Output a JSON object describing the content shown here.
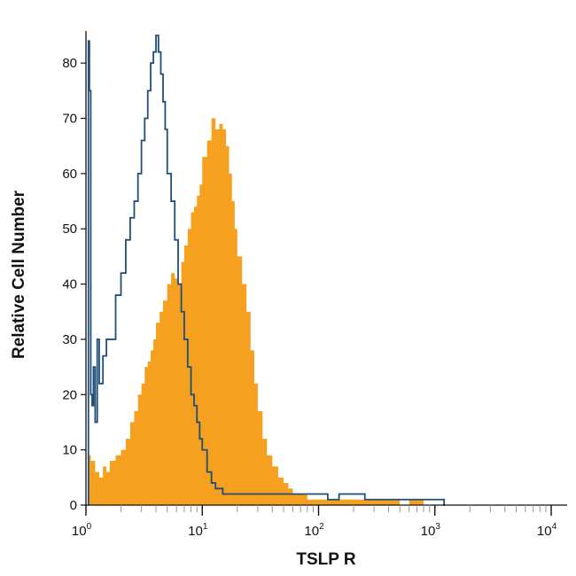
{
  "chart_data": {
    "type": "histogram-overlay",
    "xlabel": "TSLP R",
    "ylabel": "Relative Cell Number",
    "x_scale": "log",
    "xlim": [
      1,
      10000
    ],
    "ylim": [
      0,
      85
    ],
    "x_ticks": [
      {
        "value": 1,
        "base": "10",
        "exp": "0"
      },
      {
        "value": 10,
        "base": "10",
        "exp": "1"
      },
      {
        "value": 100,
        "base": "10",
        "exp": "2"
      },
      {
        "value": 1000,
        "base": "10",
        "exp": "3"
      },
      {
        "value": 10000,
        "base": "10",
        "exp": "4"
      }
    ],
    "y_ticks": [
      0,
      10,
      20,
      30,
      40,
      50,
      60,
      70,
      80
    ],
    "grid": false,
    "colors": {
      "stained_fill": "#F5A01E",
      "control_line": "#1F4E79",
      "axis": "#111111",
      "minor_tick": "#999999"
    },
    "series": [
      {
        "style": "filled",
        "color": "#F5A01E",
        "x": [
          1.05,
          1.1,
          1.2,
          1.3,
          1.4,
          1.5,
          1.6,
          1.8,
          2.0,
          2.2,
          2.4,
          2.6,
          2.8,
          3.0,
          3.2,
          3.4,
          3.6,
          3.8,
          4.0,
          4.3,
          4.6,
          5.0,
          5.4,
          5.8,
          6.2,
          6.6,
          7.0,
          7.5,
          8.0,
          8.5,
          9.0,
          9.5,
          10,
          11,
          12,
          13,
          14,
          15,
          16,
          17,
          18,
          19,
          20,
          22,
          24,
          26,
          28,
          30,
          33,
          36,
          40,
          45,
          50,
          55,
          60,
          70,
          80,
          100,
          120,
          150,
          200,
          300,
          400,
          500,
          600,
          800,
          1000,
          1200
        ],
        "y": [
          9,
          8,
          6,
          5,
          7,
          6,
          8,
          9,
          10,
          12,
          15,
          17,
          20,
          22,
          25,
          26,
          28,
          30,
          33,
          35,
          37,
          40,
          42,
          41,
          40,
          44,
          47,
          50,
          53,
          54,
          56,
          58,
          63,
          66,
          70,
          68,
          69,
          68,
          65,
          60,
          55,
          50,
          45,
          40,
          35,
          28,
          22,
          17,
          12,
          9,
          7,
          5,
          4,
          3,
          2,
          2,
          1,
          1,
          1,
          1,
          1,
          1,
          1,
          0,
          1,
          0,
          0,
          0
        ]
      },
      {
        "style": "step-line",
        "color": "#1F4E79",
        "x": [
          1.05,
          1.07,
          1.1,
          1.13,
          1.16,
          1.2,
          1.25,
          1.3,
          1.4,
          1.5,
          1.6,
          1.8,
          2.0,
          2.2,
          2.4,
          2.6,
          2.8,
          3.0,
          3.2,
          3.4,
          3.6,
          3.8,
          4.0,
          4.2,
          4.4,
          4.6,
          4.8,
          5.0,
          5.4,
          5.8,
          6.2,
          6.6,
          7.0,
          7.5,
          8.0,
          8.5,
          9.0,
          9.5,
          10,
          11,
          12,
          13,
          15,
          18,
          22,
          28,
          35,
          45,
          60,
          80,
          100,
          120,
          150,
          200,
          250,
          300,
          400,
          500,
          600,
          800,
          1000,
          1200
        ],
        "y": [
          84,
          75,
          20,
          18,
          25,
          15,
          30,
          22,
          27,
          30,
          30,
          38,
          42,
          48,
          52,
          55,
          60,
          66,
          70,
          75,
          80,
          82,
          85,
          82,
          78,
          73,
          68,
          60,
          55,
          48,
          40,
          35,
          30,
          25,
          20,
          18,
          15,
          12,
          10,
          6,
          4,
          3,
          2,
          2,
          2,
          2,
          2,
          2,
          2,
          2,
          2,
          1,
          2,
          2,
          1,
          1,
          1,
          1,
          1,
          1,
          1,
          0
        ]
      }
    ]
  }
}
